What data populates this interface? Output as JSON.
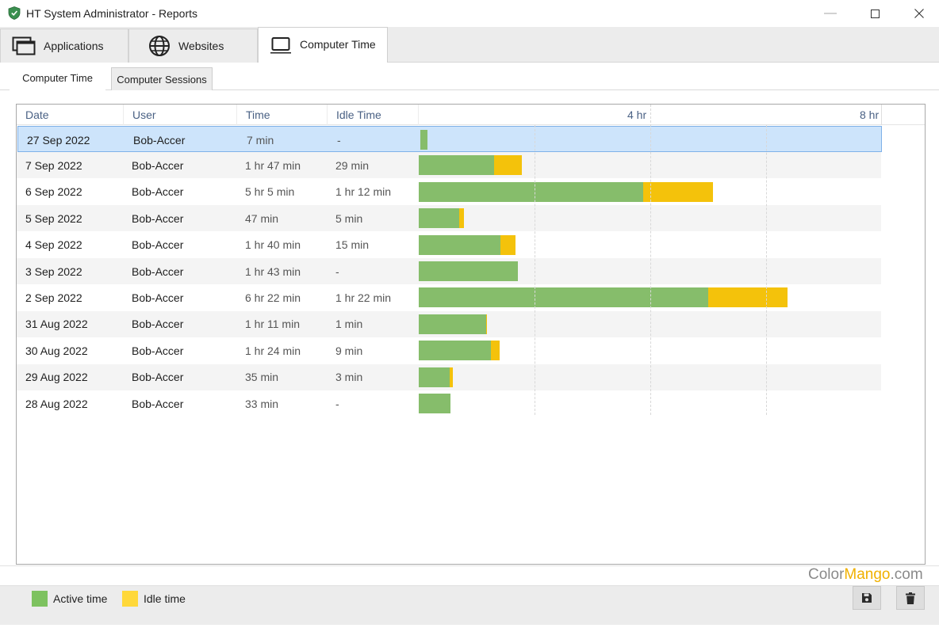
{
  "window": {
    "title": "HT System Administrator - Reports",
    "min_glyph": "—",
    "max_glyph": "☐",
    "close_glyph": "✕"
  },
  "main_tabs": [
    {
      "label": "Applications",
      "icon": "applications-icon"
    },
    {
      "label": "Websites",
      "icon": "globe-icon"
    },
    {
      "label": "Computer Time",
      "icon": "laptop-icon",
      "active": true
    }
  ],
  "sub_tabs": [
    {
      "label": "Computer Time",
      "active": true
    },
    {
      "label": "Computer Sessions"
    }
  ],
  "table": {
    "columns": [
      "Date",
      "User",
      "Time",
      "Idle Time"
    ],
    "scale_labels": [
      "4 hr",
      "8 hr"
    ],
    "rows": [
      {
        "date": "27 Sep 2022",
        "user": "Bob-Accer",
        "time": "7 min",
        "idle": "-",
        "active_min": 7,
        "idle_min": 0,
        "selected": true
      },
      {
        "date": "7 Sep 2022",
        "user": "Bob-Accer",
        "time": "1 hr 47 min",
        "idle": "29 min",
        "active_min": 78,
        "idle_min": 29
      },
      {
        "date": "6 Sep 2022",
        "user": "Bob-Accer",
        "time": "5 hr 5 min",
        "idle": "1 hr 12 min",
        "active_min": 233,
        "idle_min": 72
      },
      {
        "date": "5 Sep 2022",
        "user": "Bob-Accer",
        "time": "47 min",
        "idle": "5 min",
        "active_min": 42,
        "idle_min": 5
      },
      {
        "date": "4 Sep 2022",
        "user": "Bob-Accer",
        "time": "1 hr 40 min",
        "idle": "15 min",
        "active_min": 85,
        "idle_min": 15
      },
      {
        "date": "3 Sep 2022",
        "user": "Bob-Accer",
        "time": "1 hr 43 min",
        "idle": "-",
        "active_min": 103,
        "idle_min": 0
      },
      {
        "date": "2 Sep 2022",
        "user": "Bob-Accer",
        "time": "6 hr 22 min",
        "idle": "1 hr 22 min",
        "active_min": 300,
        "idle_min": 82
      },
      {
        "date": "31 Aug 2022",
        "user": "Bob-Accer",
        "time": "1 hr 11 min",
        "idle": "1 min",
        "active_min": 70,
        "idle_min": 1
      },
      {
        "date": "30 Aug 2022",
        "user": "Bob-Accer",
        "time": "1 hr 24 min",
        "idle": "9 min",
        "active_min": 75,
        "idle_min": 9
      },
      {
        "date": "29 Aug 2022",
        "user": "Bob-Accer",
        "time": "35 min",
        "idle": "3 min",
        "active_min": 32,
        "idle_min": 3
      },
      {
        "date": "28 Aug 2022",
        "user": "Bob-Accer",
        "time": "33 min",
        "idle": "-",
        "active_min": 33,
        "idle_min": 0
      }
    ]
  },
  "legend": {
    "active_label": "Active time",
    "idle_label": "Idle time"
  },
  "watermark": {
    "part1": "Color",
    "part2": "Mango",
    "part3": ".com"
  },
  "colors": {
    "active": "#86bd6b",
    "idle": "#f4c20b",
    "legend_active": "#7dc25f",
    "legend_idle": "#ffd83a",
    "selection": "#cde4fb"
  },
  "actions": {
    "save_icon": "save-icon",
    "delete_icon": "trash-icon"
  }
}
